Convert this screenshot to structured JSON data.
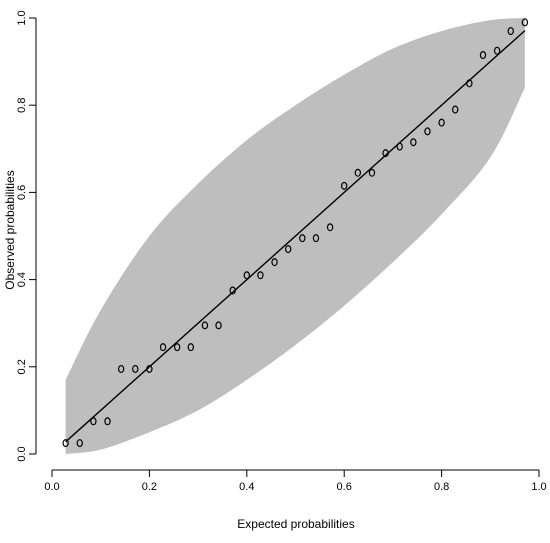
{
  "chart_data": {
    "type": "scatter",
    "title": "",
    "xlabel": "Expected probabilities",
    "ylabel": "Observed probabilities",
    "xlim": [
      0.0,
      1.0
    ],
    "ylim": [
      0.0,
      1.0
    ],
    "xticks": [
      "0.0",
      "0.2",
      "0.4",
      "0.6",
      "0.8",
      "1.0"
    ],
    "yticks": [
      "0.0",
      "0.2",
      "0.4",
      "0.6",
      "0.8",
      "1.0"
    ],
    "grid": false,
    "legend": "none",
    "colors": {
      "band": "#bebebe",
      "points": "#000000",
      "line": "#000000"
    },
    "points": {
      "x": [
        0.028,
        0.057,
        0.085,
        0.114,
        0.142,
        0.171,
        0.2,
        0.228,
        0.257,
        0.285,
        0.314,
        0.342,
        0.371,
        0.4,
        0.428,
        0.457,
        0.485,
        0.514,
        0.542,
        0.571,
        0.6,
        0.628,
        0.657,
        0.685,
        0.714,
        0.742,
        0.771,
        0.8,
        0.828,
        0.857,
        0.885,
        0.914,
        0.942,
        0.971
      ],
      "y": [
        0.025,
        0.025,
        0.075,
        0.075,
        0.195,
        0.195,
        0.195,
        0.245,
        0.245,
        0.245,
        0.295,
        0.295,
        0.375,
        0.41,
        0.41,
        0.44,
        0.47,
        0.495,
        0.495,
        0.52,
        0.615,
        0.645,
        0.645,
        0.69,
        0.705,
        0.715,
        0.74,
        0.76,
        0.79,
        0.85,
        0.915,
        0.925,
        0.97,
        0.99
      ]
    },
    "reference_line": {
      "x": [
        0.028,
        0.971
      ],
      "y": [
        0.028,
        0.971
      ]
    },
    "band": {
      "x": [
        0.028,
        0.1,
        0.2,
        0.3,
        0.4,
        0.5,
        0.6,
        0.7,
        0.8,
        0.9,
        0.971
      ],
      "upper": [
        0.17,
        0.33,
        0.5,
        0.62,
        0.72,
        0.8,
        0.87,
        0.93,
        0.97,
        0.995,
        1.0
      ],
      "lower": [
        0.0,
        0.01,
        0.05,
        0.1,
        0.17,
        0.25,
        0.34,
        0.44,
        0.55,
        0.68,
        0.84
      ]
    }
  }
}
